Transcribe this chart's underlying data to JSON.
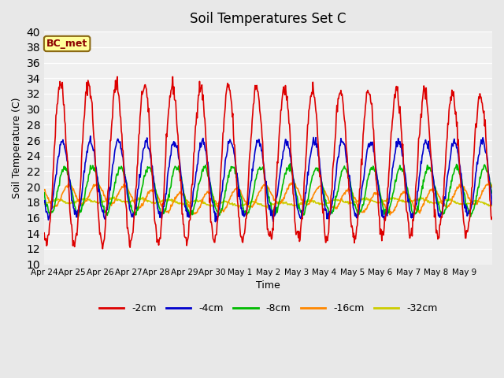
{
  "title": "Soil Temperatures Set C",
  "xlabel": "Time",
  "ylabel": "Soil Temperature (C)",
  "ylim": [
    10,
    40
  ],
  "yticks": [
    10,
    12,
    14,
    16,
    18,
    20,
    22,
    24,
    26,
    28,
    30,
    32,
    34,
    36,
    38,
    40
  ],
  "xtick_positions": [
    0,
    1,
    2,
    3,
    4,
    5,
    6,
    7,
    8,
    9,
    10,
    11,
    12,
    13,
    14,
    15
  ],
  "xtick_labels": [
    "Apr 24",
    "Apr 25",
    "Apr 26",
    "Apr 27",
    "Apr 28",
    "Apr 29",
    "Apr 30",
    "May 1",
    "May 2",
    "May 3",
    "May 4",
    "May 5",
    "May 6",
    "May 7",
    "May 8",
    "May 9"
  ],
  "annotation_text": "BC_met",
  "background_color": "#e8e8e8",
  "plot_bg_color": "#f0f0f0",
  "series_colors": [
    "#dd0000",
    "#0000cc",
    "#00bb00",
    "#ff8800",
    "#cccc00"
  ],
  "series_lw": 1.2,
  "n_points_per_day": 48,
  "n_days": 16,
  "legend_colors": [
    "#dd0000",
    "#0000cc",
    "#00bb00",
    "#ff8800",
    "#cccc00"
  ],
  "legend_labels": [
    "-2cm",
    "-4cm",
    "-8cm",
    "-16cm",
    "-32cm"
  ]
}
